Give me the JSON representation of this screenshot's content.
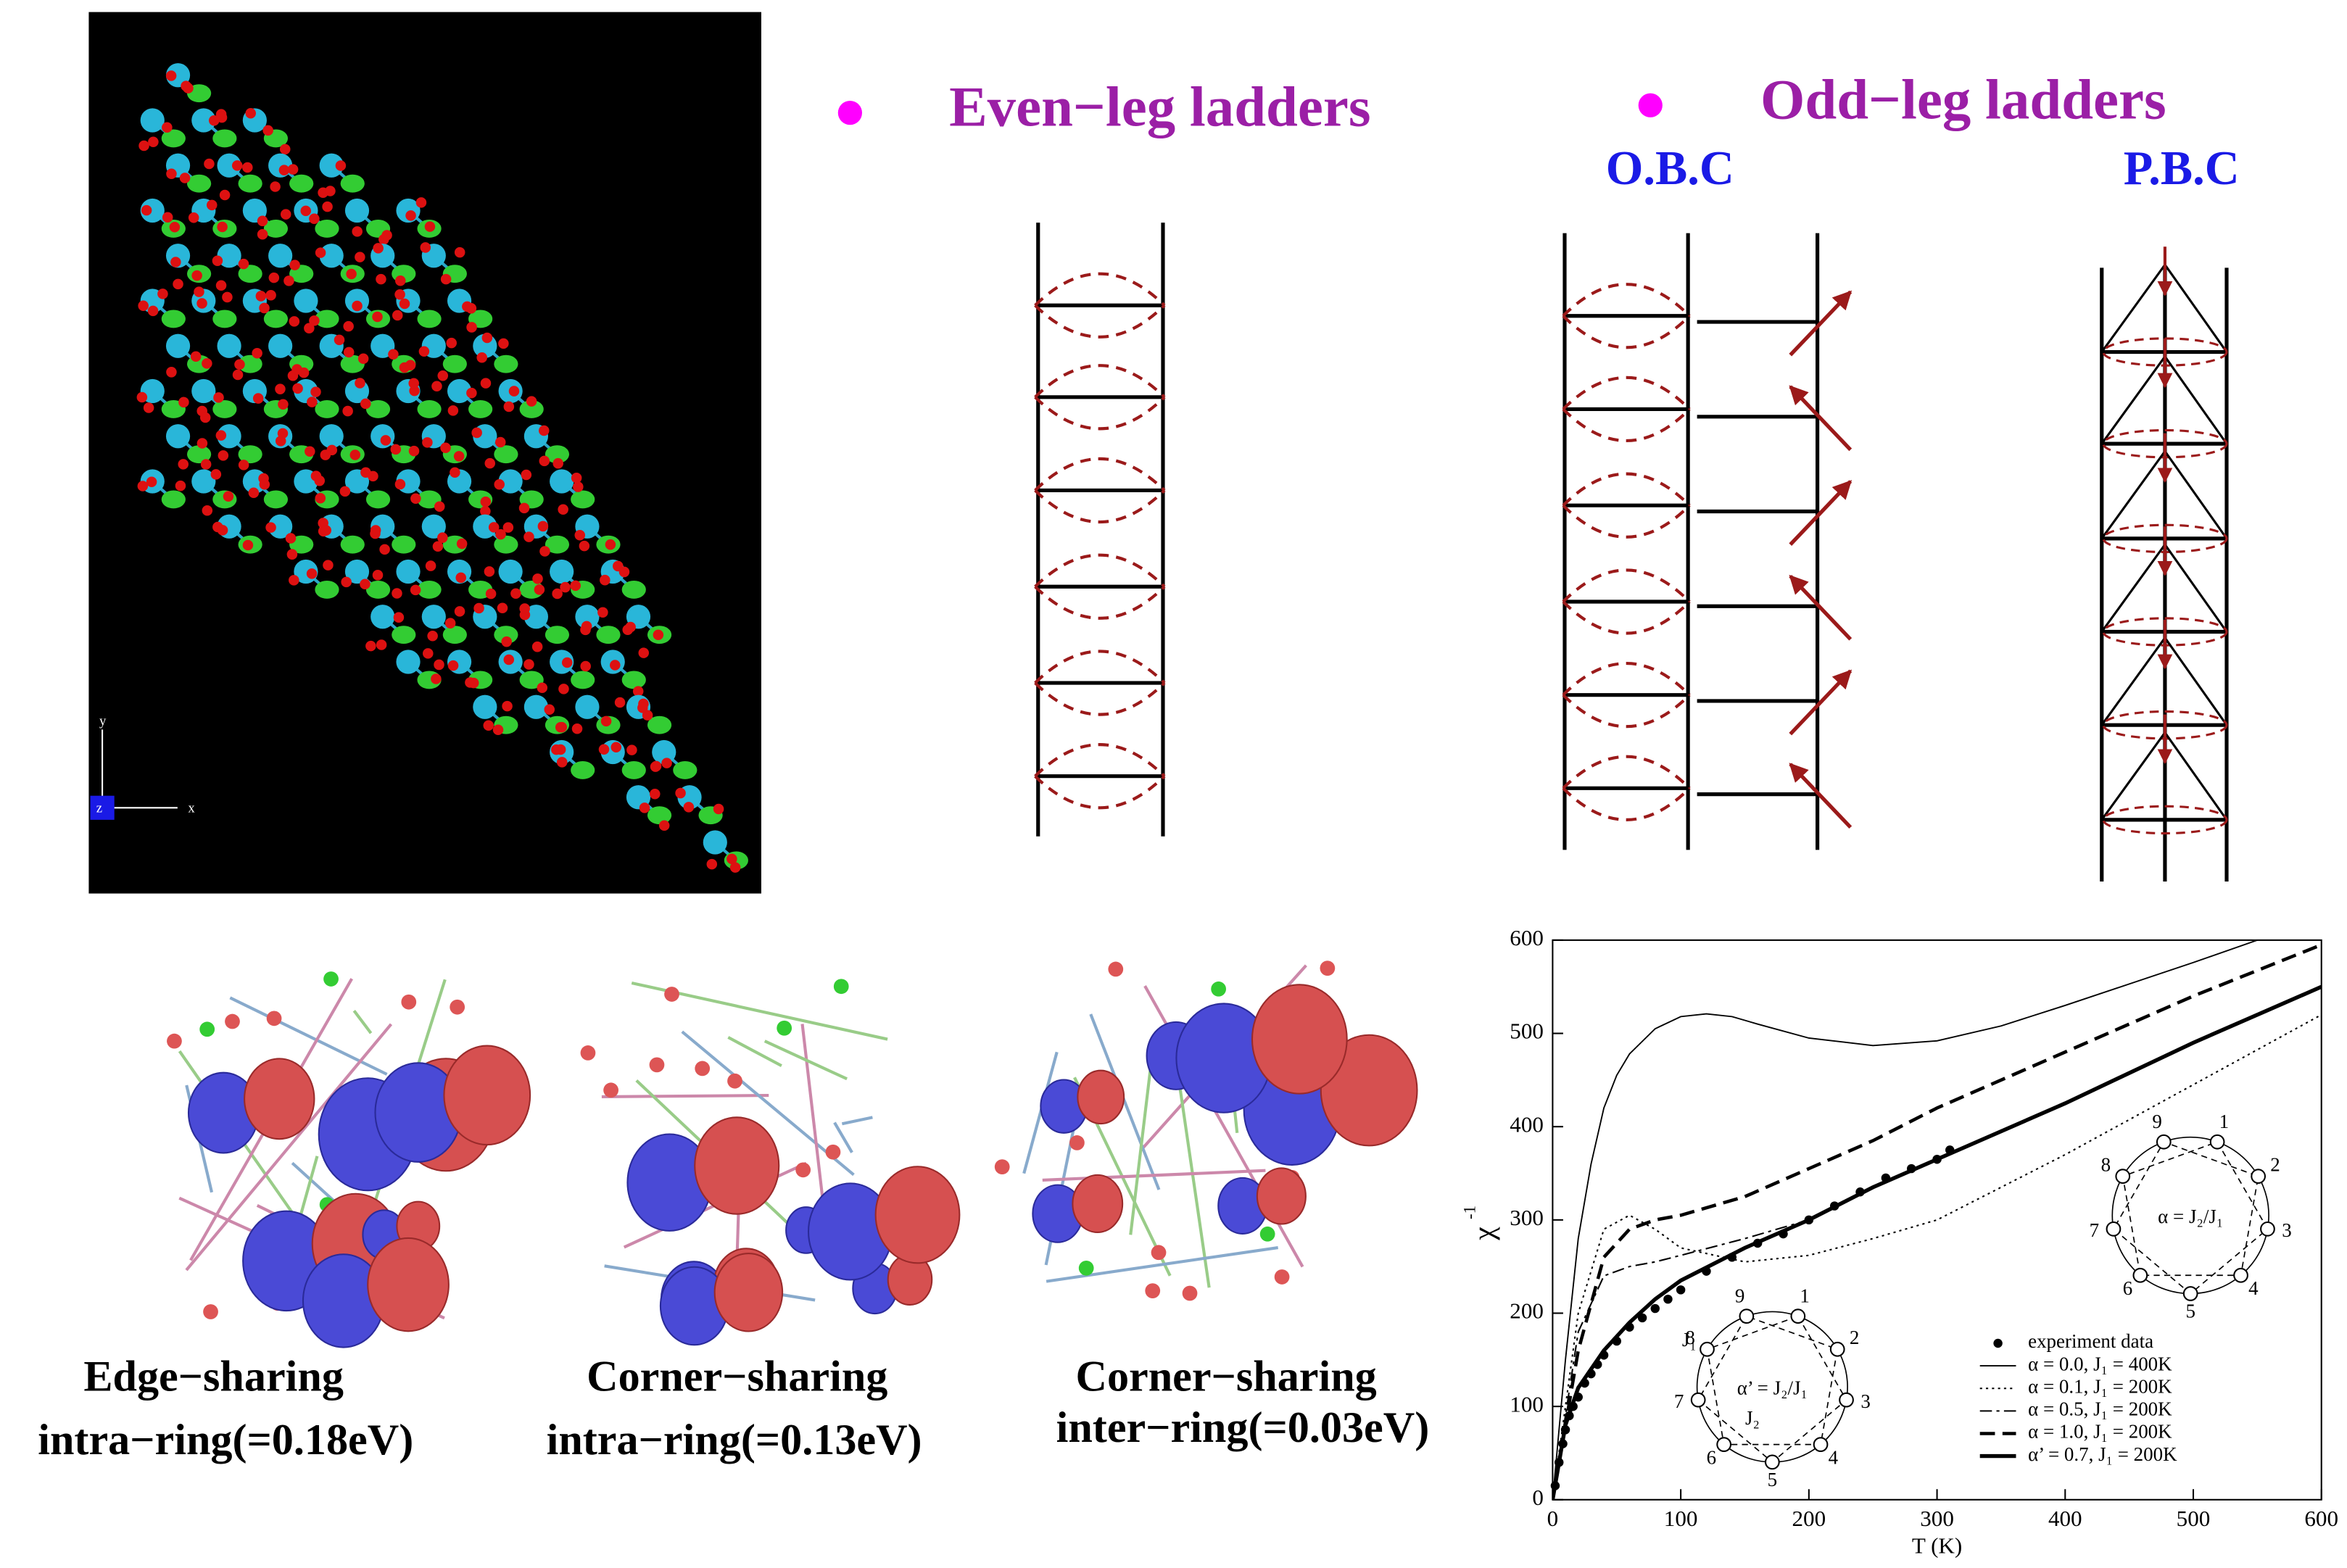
{
  "crystal": {
    "axes": [
      "x",
      "y",
      "z"
    ]
  },
  "even_leg": {
    "title": "Even−leg ladders"
  },
  "odd_leg": {
    "title": "Odd−leg ladders",
    "obc": "O.B.C",
    "pbc": "P.B.C"
  },
  "orbitals": [
    {
      "line1": "Edge−sharing",
      "line2": "intra−ring(=0.18eV)"
    },
    {
      "line1": "Corner−sharing",
      "line2": "intra−ring(=0.13eV)"
    },
    {
      "line1": "Corner−sharing",
      "line2": "inter−ring(=0.03eV)"
    }
  ],
  "chart_data": {
    "type": "line",
    "x_label": "T (K)",
    "y_label": "χ",
    "y_label_sup": "-1",
    "xlim": [
      0,
      600
    ],
    "xticks": [
      0,
      100,
      200,
      300,
      400,
      500,
      600
    ],
    "ylim": [
      0,
      600
    ],
    "yticks": [
      0,
      100,
      200,
      300,
      400,
      500,
      600
    ],
    "legend": "lower right",
    "series": [
      {
        "name": "experiment data",
        "style": "marker",
        "color": "#000",
        "x": [
          2,
          5,
          8,
          10,
          13,
          16,
          20,
          25,
          30,
          35,
          40,
          50,
          60,
          70,
          80,
          90,
          100,
          120,
          140,
          160,
          180,
          200,
          220,
          240,
          260,
          280,
          300,
          310
        ],
        "values": [
          15,
          40,
          60,
          75,
          90,
          100,
          110,
          125,
          135,
          145,
          155,
          170,
          185,
          195,
          205,
          215,
          225,
          245,
          260,
          275,
          285,
          300,
          315,
          330,
          345,
          355,
          365,
          375
        ]
      },
      {
        "name": "α = 0.0,   J₁ = 400K",
        "style": "thin",
        "color": "#000",
        "x": [
          0,
          10,
          20,
          30,
          40,
          50,
          60,
          80,
          100,
          120,
          140,
          160,
          200,
          250,
          300,
          350,
          400,
          450,
          500,
          550
        ],
        "values": [
          0,
          150,
          280,
          360,
          420,
          455,
          478,
          505,
          518,
          521,
          518,
          510,
          495,
          487,
          492,
          508,
          530,
          553,
          576,
          600
        ]
      },
      {
        "name": "α = 0.1,   J₁ = 200K",
        "style": "dotted",
        "color": "#000",
        "x": [
          0,
          20,
          40,
          60,
          80,
          100,
          150,
          200,
          250,
          300,
          400,
          500,
          600
        ],
        "values": [
          0,
          200,
          290,
          305,
          290,
          270,
          255,
          262,
          280,
          300,
          370,
          445,
          520
        ]
      },
      {
        "name": "α = 0.5,   J₁ = 200K",
        "style": "dashdot",
        "color": "#000",
        "x": [
          0,
          20,
          40,
          60,
          80,
          100,
          150,
          200
        ],
        "values": [
          0,
          180,
          240,
          250,
          255,
          262,
          280,
          300
        ]
      },
      {
        "name": "α = 1.0,   J₁ = 200K",
        "style": "dashed",
        "color": "#000",
        "x": [
          0,
          20,
          40,
          60,
          80,
          100,
          150,
          200,
          250,
          300,
          400,
          500,
          600
        ],
        "values": [
          0,
          160,
          260,
          290,
          300,
          305,
          325,
          355,
          385,
          420,
          480,
          540,
          595
        ]
      },
      {
        "name": "α’ = 0.7,   J₁ = 200K",
        "style": "thick",
        "color": "#000",
        "x": [
          0,
          10,
          20,
          40,
          60,
          80,
          100,
          150,
          200,
          250,
          300,
          400,
          500,
          600
        ],
        "values": [
          0,
          80,
          120,
          160,
          190,
          215,
          235,
          270,
          300,
          335,
          365,
          425,
          490,
          550
        ]
      }
    ],
    "insets": [
      {
        "label": "α’ = J₂/J₁",
        "nodes": [
          "1",
          "2",
          "3",
          "4",
          "5",
          "6",
          "7",
          "8",
          "9"
        ],
        "bond_labels": [
          "J₁",
          "J₂"
        ]
      },
      {
        "label": "α = J₂/J₁",
        "nodes": [
          "1",
          "2",
          "3",
          "4",
          "5",
          "6",
          "7",
          "8",
          "9"
        ]
      }
    ]
  }
}
